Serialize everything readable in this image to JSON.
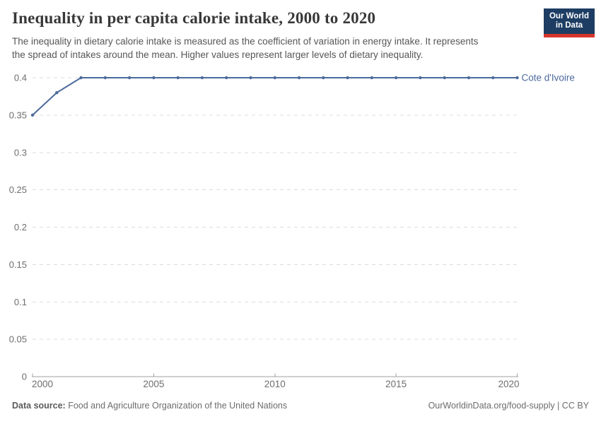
{
  "header": {
    "title": "Inequality in per capita calorie intake, 2000 to 2020",
    "subtitle_lines": [
      "The inequality in dietary calorie intake is measured as the coefficient of variation in energy intake. It represents",
      "the spread of intakes around the mean. Higher values represent larger levels of dietary inequality."
    ],
    "logo": {
      "line1": "Our World",
      "line2": "in Data"
    }
  },
  "chart_data": {
    "type": "line",
    "title": "Inequality in per capita calorie intake, 2000 to 2020",
    "x": [
      2000,
      2001,
      2002,
      2003,
      2004,
      2005,
      2006,
      2007,
      2008,
      2009,
      2010,
      2011,
      2012,
      2013,
      2014,
      2015,
      2016,
      2017,
      2018,
      2019,
      2020
    ],
    "series": [
      {
        "name": "Cote d'Ivoire",
        "color": "#4C6A9C",
        "values": [
          0.35,
          0.38,
          0.4,
          0.4,
          0.4,
          0.4,
          0.4,
          0.4,
          0.4,
          0.4,
          0.4,
          0.4,
          0.4,
          0.4,
          0.4,
          0.4,
          0.4,
          0.4,
          0.4,
          0.4,
          0.4
        ]
      }
    ],
    "xlim": [
      2000,
      2020
    ],
    "ylim": [
      0,
      0.4
    ],
    "xticks": [
      2000,
      2005,
      2010,
      2015,
      2020
    ],
    "yticks": [
      0,
      0.05,
      0.1,
      0.15,
      0.2,
      0.25,
      0.3,
      0.35,
      0.4
    ],
    "ytick_labels": [
      "0",
      "0.05",
      "0.1",
      "0.15",
      "0.2",
      "0.25",
      "0.3",
      "0.35",
      "0.4"
    ],
    "xlabel": "",
    "ylabel": "",
    "grid": "horizontal-dashed",
    "legend_position": "end-of-line"
  },
  "footer": {
    "source_label": "Data source:",
    "source_text": " Food and Agriculture Organization of the United Nations",
    "credit": "OurWorldinData.org/food-supply | CC BY"
  },
  "colors": {
    "accent": "#4C6A9C",
    "logo_bg": "#1d3d63",
    "logo_bar": "#d8352b",
    "grid": "#dcdcdc",
    "axis": "#a1a1a1",
    "tick_text": "#6e6e6e"
  }
}
